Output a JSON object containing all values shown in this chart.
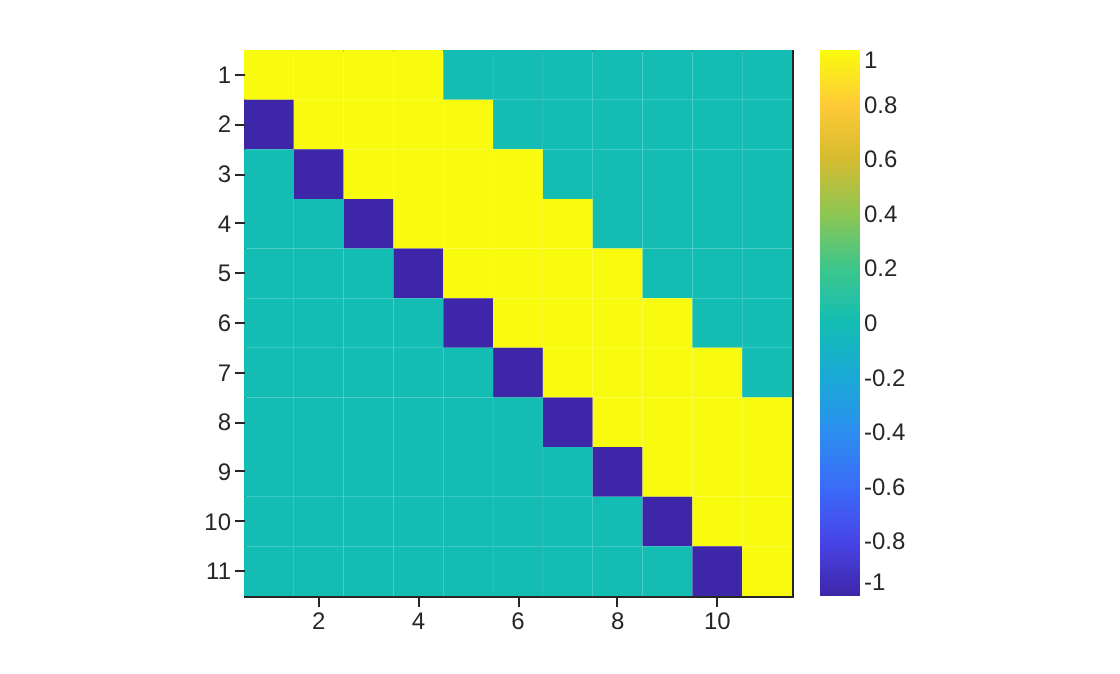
{
  "chart_data": {
    "type": "heatmap",
    "categories": [
      null,
      "2",
      null,
      "4",
      null,
      "6",
      null,
      "8",
      null,
      "10",
      null
    ],
    "y_categories": [
      "1",
      "2",
      "3",
      "4",
      "5",
      "6",
      "7",
      "8",
      "9",
      "10",
      "11"
    ],
    "cells": [
      [
        1,
        1,
        1,
        1,
        0,
        0,
        0,
        0,
        0,
        0,
        0
      ],
      [
        -1,
        1,
        1,
        1,
        1,
        0,
        0,
        0,
        0,
        0,
        0
      ],
      [
        0,
        -1,
        1,
        1,
        1,
        1,
        0,
        0,
        0,
        0,
        0
      ],
      [
        0,
        0,
        -1,
        1,
        1,
        1,
        1,
        0,
        0,
        0,
        0
      ],
      [
        0,
        0,
        0,
        -1,
        1,
        1,
        1,
        1,
        0,
        0,
        0
      ],
      [
        0,
        0,
        0,
        0,
        -1,
        1,
        1,
        1,
        1,
        0,
        0
      ],
      [
        0,
        0,
        0,
        0,
        0,
        -1,
        1,
        1,
        1,
        1,
        0
      ],
      [
        0,
        0,
        0,
        0,
        0,
        0,
        -1,
        1,
        1,
        1,
        1
      ],
      [
        0,
        0,
        0,
        0,
        0,
        0,
        0,
        -1,
        1,
        1,
        1
      ],
      [
        0,
        0,
        0,
        0,
        0,
        0,
        0,
        0,
        -1,
        1,
        1
      ],
      [
        0,
        0,
        0,
        0,
        0,
        0,
        0,
        0,
        0,
        -1,
        1
      ]
    ],
    "clim": [
      -1,
      1
    ],
    "cticks": [
      -1,
      -0.8,
      -0.6,
      -0.4,
      -0.2,
      0,
      0.2,
      0.4,
      0.6,
      0.8,
      1
    ],
    "grid": false
  }
}
